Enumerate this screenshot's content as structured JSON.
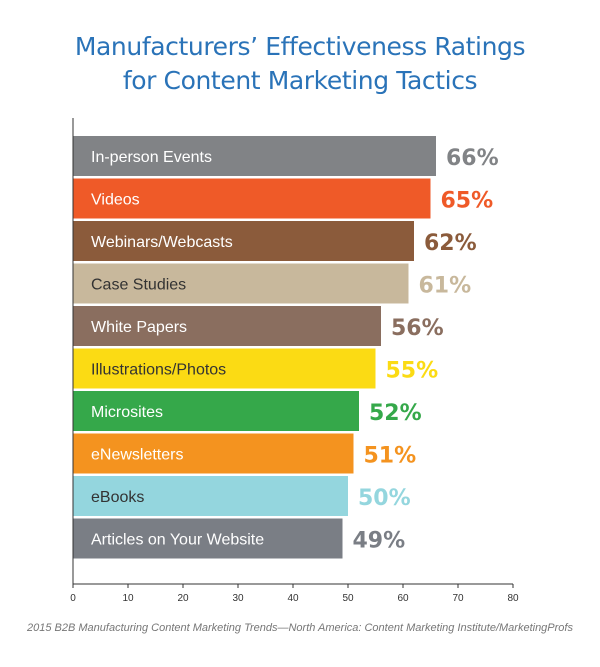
{
  "chart_data": {
    "type": "bar",
    "orientation": "horizontal",
    "title_lines": [
      "Manufacturers’ Effectiveness Ratings",
      "for Content Marketing Tactics"
    ],
    "categories": [
      "In-person Events",
      "Videos",
      "Webinars/Webcasts",
      "Case Studies",
      "White Papers",
      "Illustrations/Photos",
      "Microsites",
      "eNewsletters",
      "eBooks",
      "Articles on Your Website"
    ],
    "values": [
      66,
      65,
      62,
      61,
      56,
      55,
      52,
      51,
      50,
      49
    ],
    "value_labels": [
      "66%",
      "65%",
      "62%",
      "61%",
      "56%",
      "55%",
      "52%",
      "51%",
      "50%",
      "49%"
    ],
    "colors": [
      "#818386",
      "#ef5a28",
      "#8b5b3b",
      "#c8b89c",
      "#8a6e5f",
      "#fbdb14",
      "#35a84a",
      "#f4931f",
      "#94d6de",
      "#7a7e85"
    ],
    "label_colors": [
      "#818386",
      "#ef5a28",
      "#8b5b3b",
      "#c8b89c",
      "#8a6e5f",
      "#fbdb14",
      "#35a84a",
      "#f4931f",
      "#94d6de",
      "#7a7e85"
    ],
    "category_text_colors": [
      "#ffffff",
      "#ffffff",
      "#ffffff",
      "#333333",
      "#ffffff",
      "#333333",
      "#ffffff",
      "#ffffff",
      "#333333",
      "#ffffff"
    ],
    "xlim": [
      0,
      80
    ],
    "xticks": [
      "0",
      "10",
      "20",
      "30",
      "40",
      "50",
      "60",
      "70",
      "80"
    ],
    "grid": false,
    "source": "2015 B2B Manufacturing Content Marketing Trends—North America: Content Marketing Institute/MarketingProfs"
  }
}
